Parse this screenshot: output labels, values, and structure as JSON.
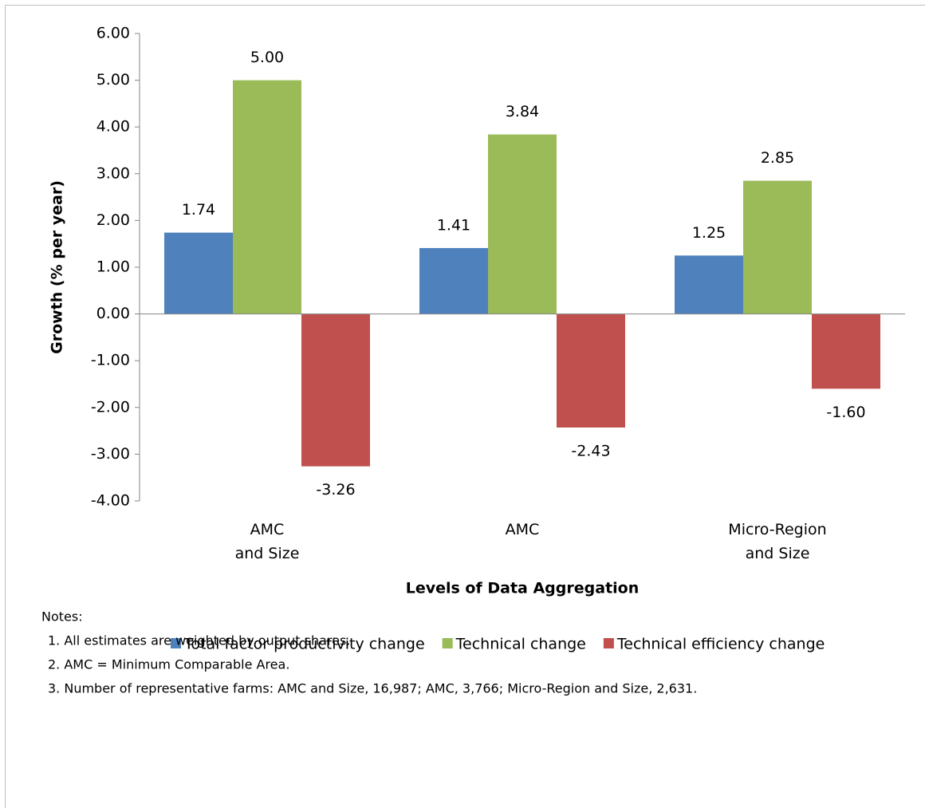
{
  "chart_data": {
    "type": "bar",
    "x_label": "Levels of Data  Aggregation",
    "y_label": "Growth (% per year)",
    "categories": [
      "AMC\nand Size",
      "AMC",
      "Micro-Region\nand Size"
    ],
    "series": [
      {
        "name": "Total factor productivity change",
        "color": "#4f81bd",
        "values": [
          1.74,
          1.41,
          1.25
        ],
        "value_labels": [
          "1.74",
          "1.41",
          "1.25"
        ]
      },
      {
        "name": "Technical change",
        "color": "#9bbb59",
        "values": [
          5.0,
          3.84,
          2.85
        ],
        "value_labels": [
          "5.00",
          "3.84",
          "2.85"
        ]
      },
      {
        "name": "Technical efficiency change",
        "color": "#c0504d",
        "values": [
          -3.26,
          -2.43,
          -1.6
        ],
        "value_labels": [
          "-3.26",
          "-2.43",
          "-1.60"
        ]
      }
    ],
    "ylim": [
      -4,
      6
    ],
    "yticks": [
      {
        "value": 6,
        "label": "6.00"
      },
      {
        "value": 5,
        "label": "5.00"
      },
      {
        "value": 4,
        "label": "4.00"
      },
      {
        "value": 3,
        "label": "3.00"
      },
      {
        "value": 2,
        "label": "2.00"
      },
      {
        "value": 1,
        "label": "1.00"
      },
      {
        "value": 0,
        "label": "0.00"
      },
      {
        "value": -1,
        "label": "-1.00"
      },
      {
        "value": -2,
        "label": "-2.00"
      },
      {
        "value": -3,
        "label": "-3.00"
      },
      {
        "value": -4,
        "label": "-4.00"
      }
    ],
    "legend": "bottom",
    "grid": false
  },
  "notes": {
    "title": "Notes:",
    "items": [
      "1. All estimates are weighted by output shares.",
      "2. AMC = Minimum Comparable Area.",
      "3. Number of representative farms: AMC and Size, 16,987; AMC, 3,766; Micro-Region and Size, 2,631."
    ]
  }
}
